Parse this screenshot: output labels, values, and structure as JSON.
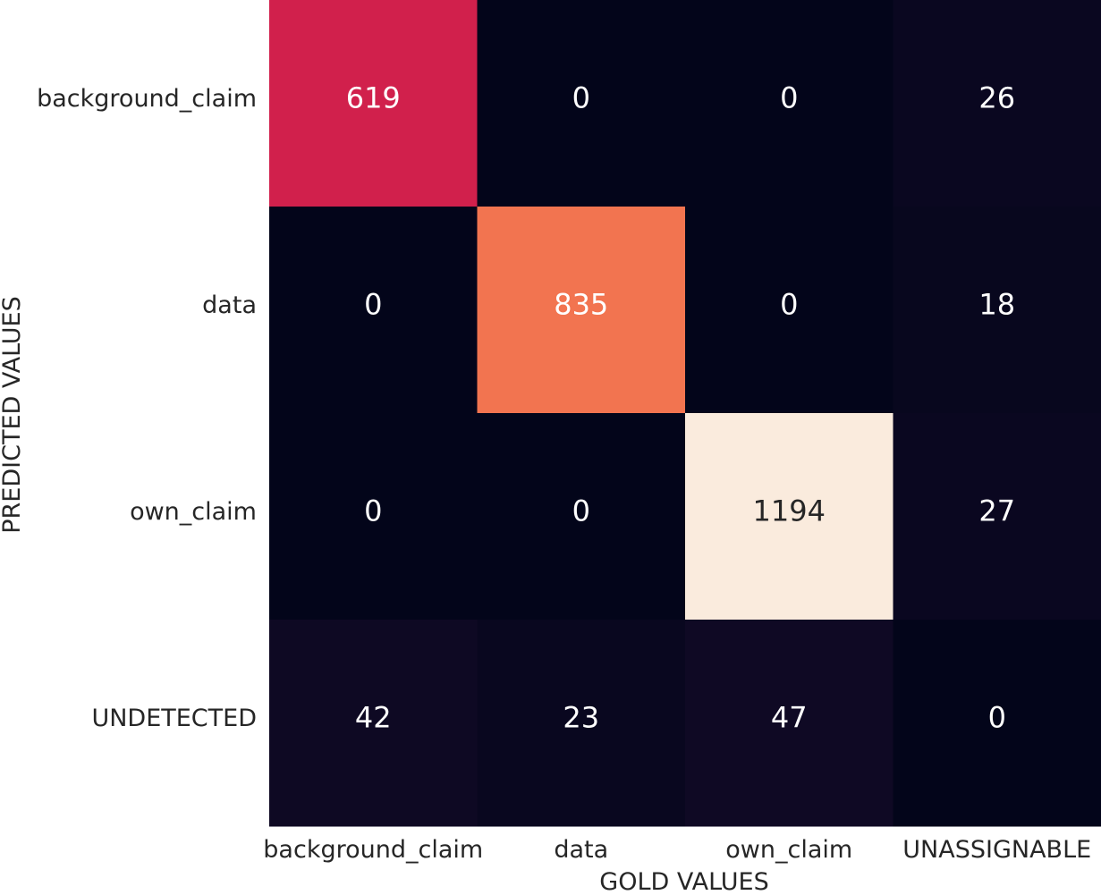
{
  "chart_data": {
    "type": "heatmap",
    "title": "",
    "xlabel": "GOLD VALUES",
    "ylabel": "PREDICTED VALUES",
    "x_categories": [
      "background_claim",
      "data",
      "own_claim",
      "UNASSIGNABLE"
    ],
    "y_categories": [
      "background_claim",
      "data",
      "own_claim",
      "UNDETECTED"
    ],
    "values": [
      [
        619,
        0,
        0,
        26
      ],
      [
        0,
        835,
        0,
        18
      ],
      [
        0,
        0,
        1194,
        27
      ],
      [
        42,
        23,
        47,
        0
      ]
    ],
    "colorscale": "rocket",
    "colorbar": false,
    "annotations": true
  }
}
